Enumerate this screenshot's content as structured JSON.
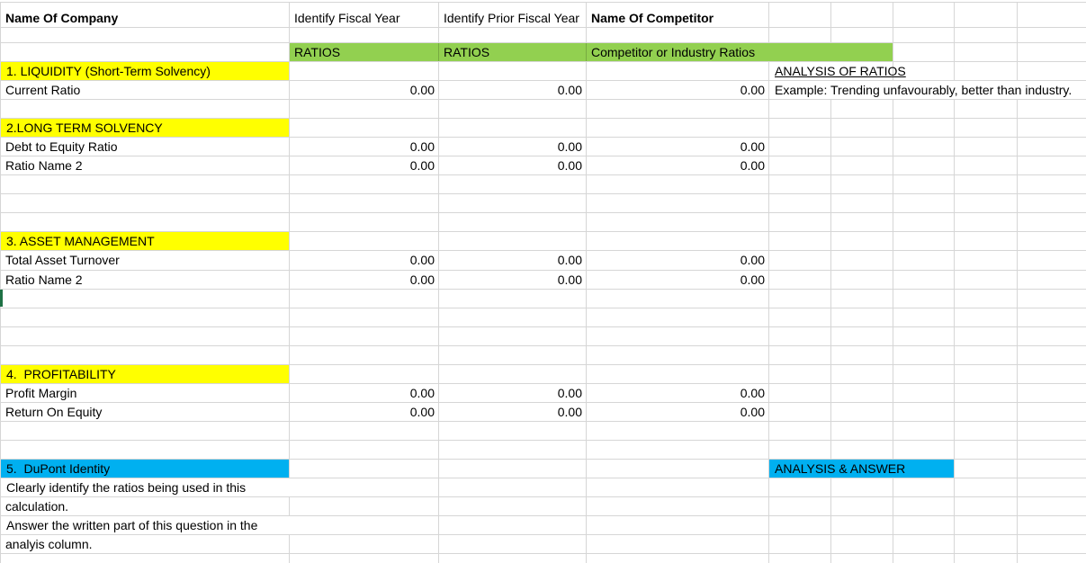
{
  "colors": {
    "section-highlight": "#ffff00",
    "ratios-band": "#92d050",
    "dupont-highlight": "#00b0f0",
    "selection-green": "#1e7145",
    "gridline": "#d6d6d6"
  },
  "headers": {
    "company": "Name Of Company",
    "fiscal_year": "Identify Fiscal Year",
    "prior_fiscal_year": "Identify Prior Fiscal Year",
    "competitor": "Name Of Competitor",
    "ratios_fiscal": "RATIOS",
    "ratios_prior": "RATIOS",
    "competitor_ratios": "Competitor or Industry Ratios",
    "analysis_of_ratios": "ANALYSIS OF RATIOS",
    "analysis_answer": "ANALYSIS & ANSWER"
  },
  "sections": {
    "liquidity": "1. LIQUIDITY (Short-Term Solvency)",
    "long_term_solvency": "2.LONG TERM SOLVENCY",
    "asset_management": "3. ASSET MANAGEMENT",
    "profitability": "4.  PROFITABILITY",
    "dupont": "5.  DuPont Identity"
  },
  "ratios": {
    "current_ratio": {
      "label": "Current Ratio",
      "fiscal_year": "0.00",
      "prior_fiscal_year": "0.00",
      "competitor": "0.00"
    },
    "debt_to_equity": {
      "label": "Debt to Equity Ratio",
      "fiscal_year": "0.00",
      "prior_fiscal_year": "0.00",
      "competitor": "0.00"
    },
    "long_term_ratio_2": {
      "label": "Ratio Name 2",
      "fiscal_year": "0.00",
      "prior_fiscal_year": "0.00",
      "competitor": "0.00"
    },
    "total_asset_turnover": {
      "label": "Total Asset Turnover",
      "fiscal_year": "0.00",
      "prior_fiscal_year": "0.00",
      "competitor": "0.00"
    },
    "asset_ratio_2": {
      "label": "Ratio Name 2",
      "fiscal_year": "0.00",
      "prior_fiscal_year": "0.00",
      "competitor": "0.00"
    },
    "profit_margin": {
      "label": "Profit Margin",
      "fiscal_year": "0.00",
      "prior_fiscal_year": "0.00",
      "competitor": "0.00"
    },
    "return_on_equity": {
      "label": "Return On Equity",
      "fiscal_year": "0.00",
      "prior_fiscal_year": "0.00",
      "competitor": "0.00"
    }
  },
  "notes": {
    "example": "Example: Trending unfavourably, better than industry.",
    "instruction_line1": "Clearly identify the ratios being used in this",
    "instruction_line2": "calculation.",
    "instruction_line3": "Answer the written part of this question in the",
    "instruction_line4": "analyis column."
  }
}
